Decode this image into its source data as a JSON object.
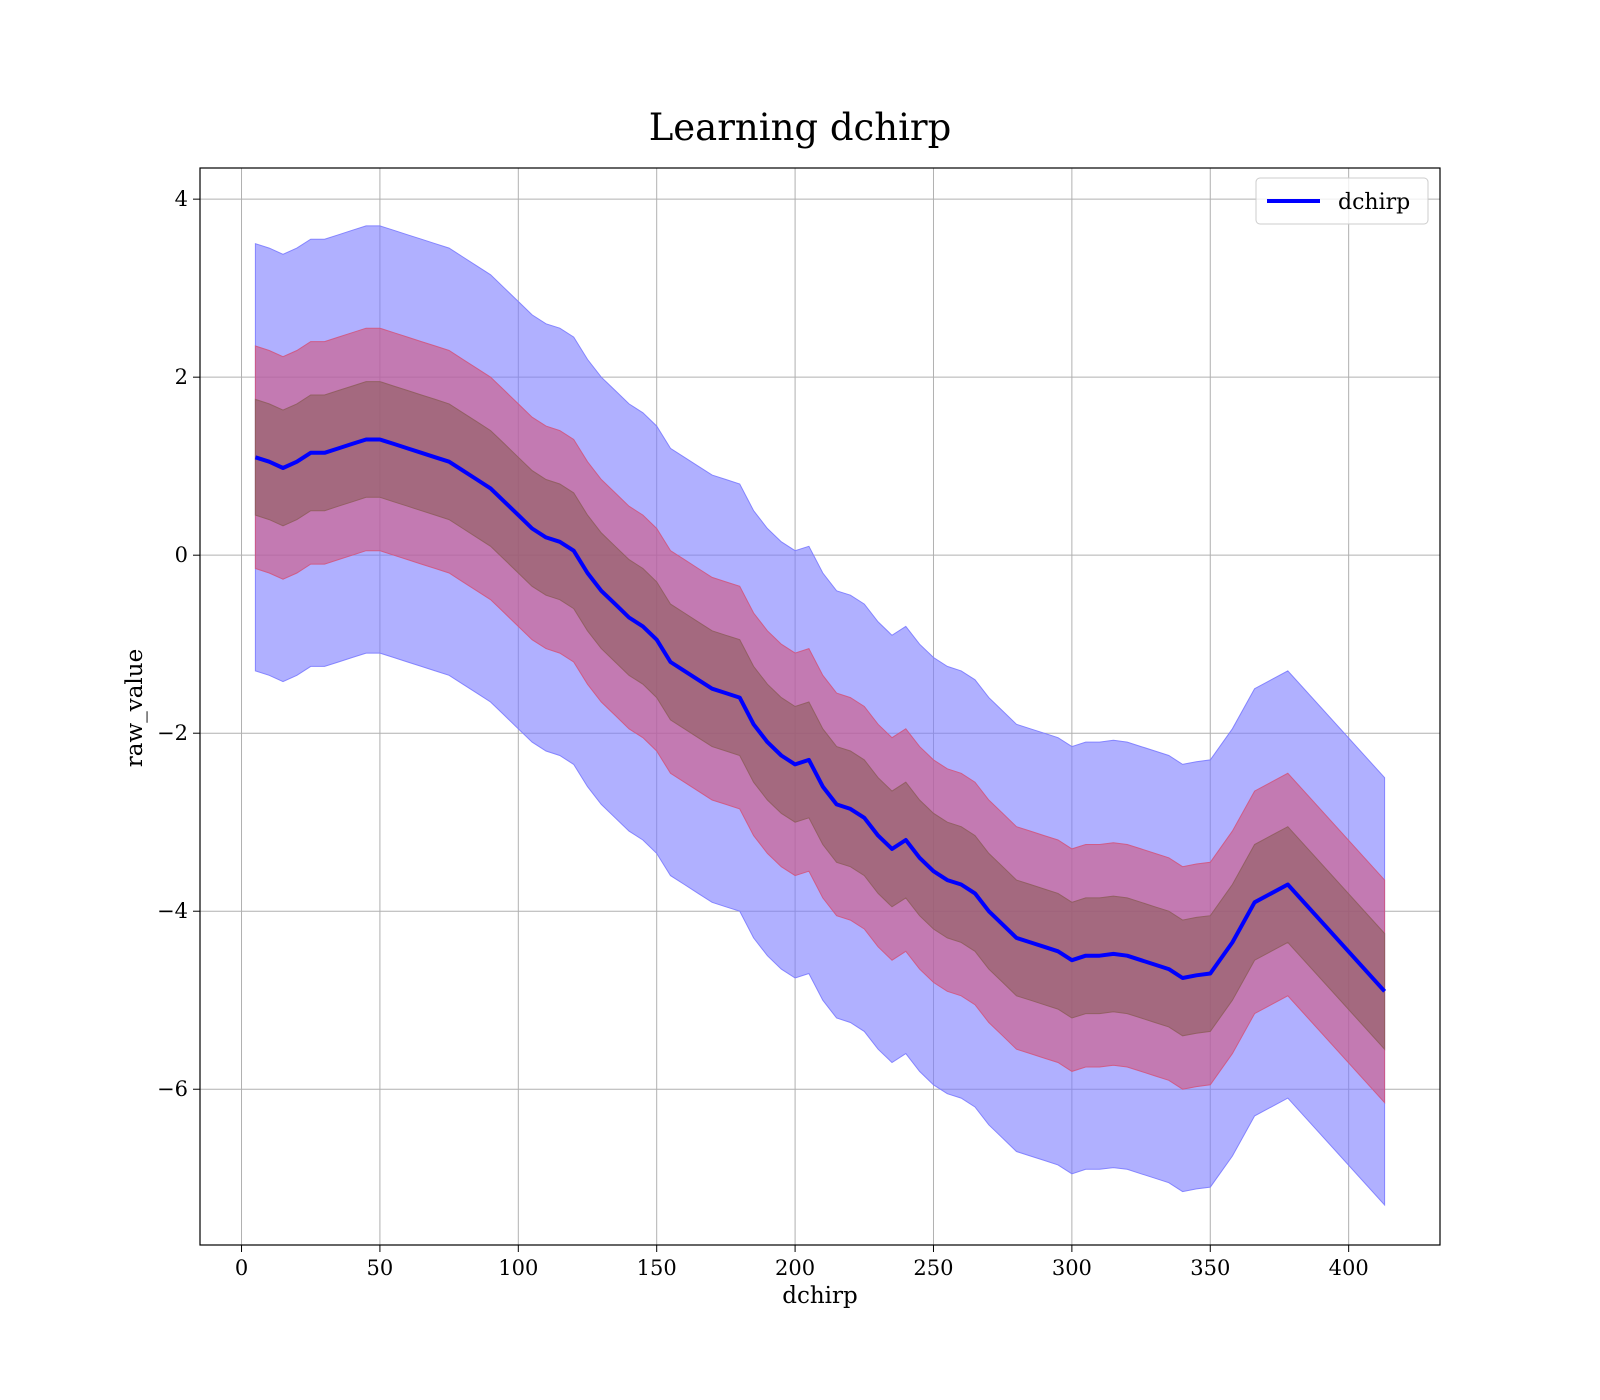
{
  "chart_data": {
    "type": "line",
    "title": "Learning dchirp",
    "xlabel": "dchirp",
    "ylabel": "raw_value",
    "xlim": [
      -15,
      433
    ],
    "ylim": [
      -7.75,
      4.35
    ],
    "x_ticks": [
      0,
      50,
      100,
      150,
      200,
      250,
      300,
      350,
      400
    ],
    "x_tick_labels": [
      "0",
      "50",
      "100",
      "150",
      "200",
      "250",
      "300",
      "350",
      "400"
    ],
    "y_ticks": [
      4,
      2,
      0,
      -2,
      -4,
      -6
    ],
    "y_tick_labels": [
      "4",
      "2",
      "0",
      "−2",
      "−4",
      "−6"
    ],
    "grid": true,
    "legend": {
      "position": "top-right",
      "entries": [
        "dchirp"
      ]
    },
    "series": [
      {
        "name": "dchirp",
        "color": "#0000ff",
        "x": [
          5,
          10,
          15,
          20,
          25,
          30,
          35,
          40,
          45,
          50,
          55,
          60,
          65,
          70,
          75,
          80,
          85,
          90,
          95,
          100,
          105,
          110,
          115,
          120,
          125,
          130,
          135,
          140,
          145,
          150,
          155,
          160,
          165,
          170,
          175,
          180,
          185,
          190,
          195,
          200,
          205,
          210,
          215,
          220,
          225,
          230,
          235,
          240,
          245,
          250,
          255,
          260,
          265,
          270,
          275,
          280,
          285,
          290,
          295,
          300,
          305,
          310,
          315,
          320,
          325,
          330,
          335,
          340,
          345,
          350,
          358,
          366,
          378,
          413
        ],
        "values": [
          1.1,
          1.05,
          0.98,
          1.05,
          1.15,
          1.15,
          1.2,
          1.25,
          1.3,
          1.3,
          1.25,
          1.2,
          1.15,
          1.1,
          1.05,
          0.95,
          0.85,
          0.75,
          0.6,
          0.45,
          0.3,
          0.2,
          0.15,
          0.05,
          -0.2,
          -0.4,
          -0.55,
          -0.7,
          -0.8,
          -0.95,
          -1.2,
          -1.3,
          -1.4,
          -1.5,
          -1.55,
          -1.6,
          -1.9,
          -2.1,
          -2.25,
          -2.35,
          -2.3,
          -2.6,
          -2.8,
          -2.85,
          -2.95,
          -3.15,
          -3.3,
          -3.2,
          -3.4,
          -3.55,
          -3.65,
          -3.7,
          -3.8,
          -4.0,
          -4.15,
          -4.3,
          -4.35,
          -4.4,
          -4.45,
          -4.55,
          -4.5,
          -4.5,
          -4.48,
          -4.5,
          -4.55,
          -4.6,
          -4.65,
          -4.75,
          -4.72,
          -4.7,
          -4.35,
          -3.9,
          -3.7,
          -4.9
        ]
      }
    ],
    "bands": [
      {
        "name": "outer",
        "color": "#7b7bff",
        "half_width": 2.4
      },
      {
        "name": "middle",
        "color": "#d1577f",
        "half_width": 1.25
      },
      {
        "name": "inner",
        "color": "#8f5e5e",
        "half_width": 0.65
      }
    ]
  }
}
